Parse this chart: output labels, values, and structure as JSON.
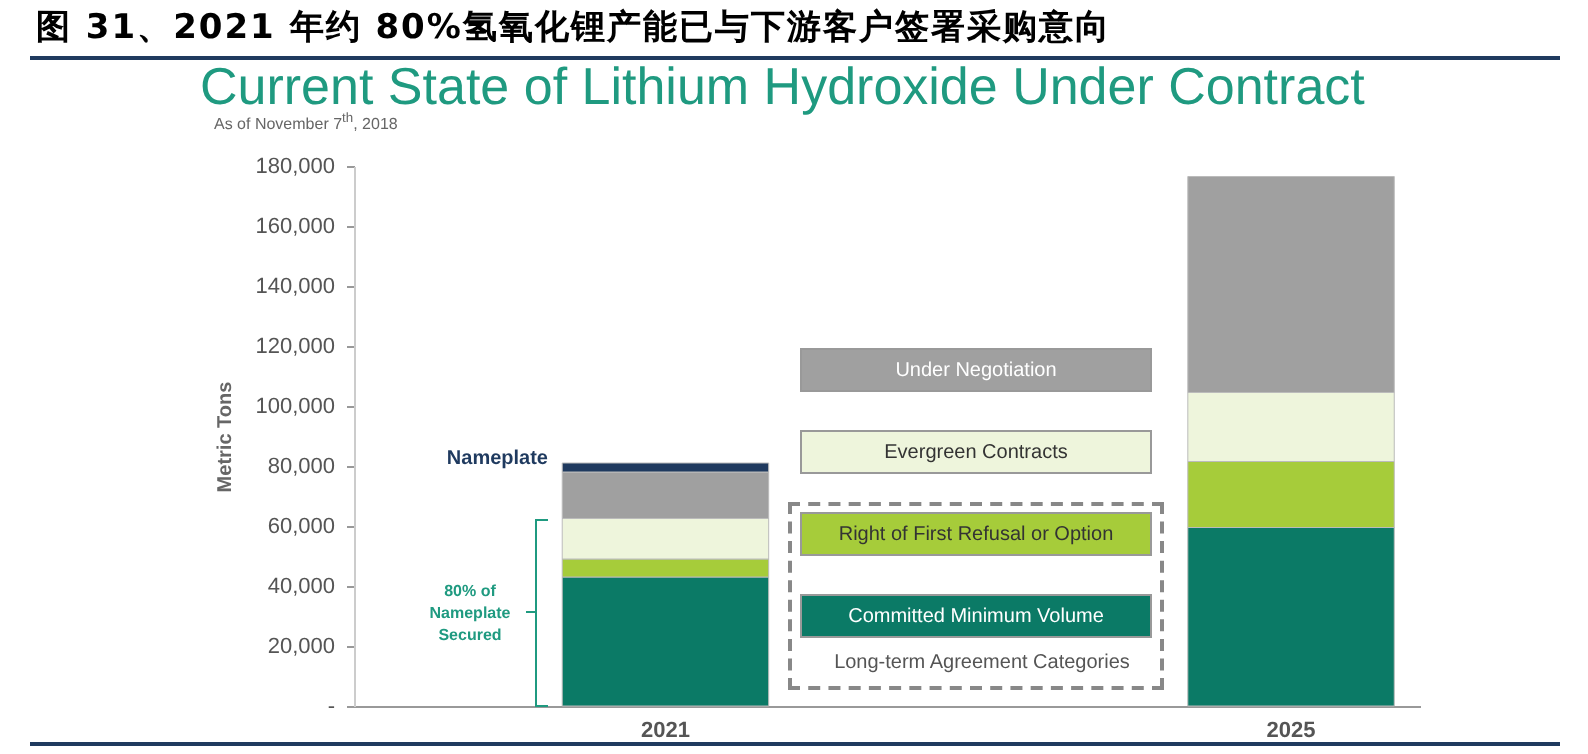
{
  "chart_data": {
    "type": "bar",
    "title": "图 31、2021 年约 80%氢氧化锂产能已与下游客户签署采购意向",
    "subtitle": "Current State of Lithium Hydroxide Under Contract",
    "ylabel": "Metric Tons",
    "categories": [
      "2021",
      "2025"
    ],
    "stacked": true,
    "series": [
      {
        "name": "Committed Minimum Volume",
        "color": "#0b7a66",
        "values": [
          43000,
          59500
        ]
      },
      {
        "name": "Right of First Refusal or Option",
        "color": "#a6cc3a",
        "values": [
          6000,
          22000
        ]
      },
      {
        "name": "Evergreen Contracts",
        "color": "#eef5dc",
        "values": [
          13500,
          23000
        ]
      },
      {
        "name": "Under Negotiation",
        "color": "#a0a0a0",
        "values": [
          15500,
          72000
        ]
      },
      {
        "name": "Nameplate",
        "color": "#1f3a5f",
        "values": [
          3000,
          null
        ]
      }
    ],
    "ylim": [
      0,
      180000
    ],
    "yticks": [
      {
        "value": 0,
        "label": "-"
      },
      {
        "value": 20000,
        "label": "20,000"
      },
      {
        "value": 40000,
        "label": "40,000"
      },
      {
        "value": 60000,
        "label": "60,000"
      },
      {
        "value": 80000,
        "label": "80,000"
      },
      {
        "value": 100000,
        "label": "100,000"
      },
      {
        "value": 120000,
        "label": "120,000"
      },
      {
        "value": 140000,
        "label": "140,000"
      },
      {
        "value": 160000,
        "label": "160,000"
      },
      {
        "value": 180000,
        "label": "180,000"
      }
    ],
    "legend": "center",
    "grid": false,
    "annotations": [
      "As of November 7$^{th}$, 2018",
      "80% of Nameplate Secured",
      "Long-term Agreement Categories"
    ]
  }
}
